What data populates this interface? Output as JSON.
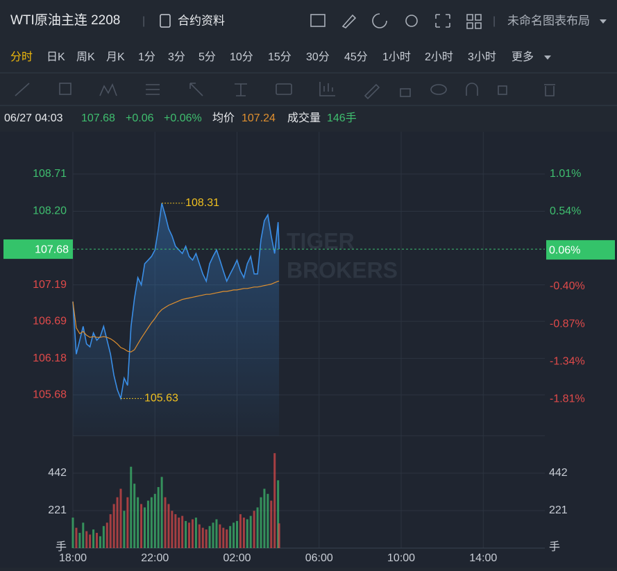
{
  "header": {
    "symbol": "WTI原油主连 2208",
    "contract_info": "合约资料",
    "layout_name": "未命名图表布局"
  },
  "timeframes": [
    "分时",
    "日K",
    "周K",
    "月K",
    "1分",
    "3分",
    "5分",
    "10分",
    "15分",
    "30分",
    "45分",
    "1小时",
    "2小时",
    "3小时",
    "更多"
  ],
  "active_timeframe": 0,
  "info": {
    "datetime": "06/27 04:03",
    "price": "107.68",
    "change": "+0.06",
    "change_pct": "+0.06%",
    "avg_label": "均价",
    "avg": "107.24",
    "volume_label": "成交量",
    "volume": "146手"
  },
  "watermark": [
    "TIGER",
    "BROKERS"
  ],
  "chart_data": {
    "type": "line",
    "x": [
      "18:00",
      "18:10",
      "18:20",
      "18:30",
      "18:40",
      "18:50",
      "19:00",
      "19:10",
      "19:20",
      "19:30",
      "19:40",
      "19:50",
      "20:00",
      "20:10",
      "20:20",
      "20:30",
      "20:40",
      "20:50",
      "21:00",
      "21:10",
      "21:20",
      "21:30",
      "21:40",
      "21:50",
      "22:00",
      "22:10",
      "22:20",
      "22:30",
      "22:40",
      "22:50",
      "23:00",
      "23:10",
      "23:20",
      "23:30",
      "23:40",
      "23:50",
      "00:00",
      "00:10",
      "00:20",
      "00:30",
      "00:40",
      "00:50",
      "01:00",
      "01:10",
      "01:20",
      "01:30",
      "01:40",
      "01:50",
      "02:00",
      "02:10",
      "02:20",
      "02:30",
      "02:40",
      "02:50",
      "03:00",
      "03:10",
      "03:20",
      "03:30",
      "03:40",
      "03:50",
      "04:00",
      "04:03"
    ],
    "series": [
      {
        "name": "价格",
        "color": "#3a8ee6",
        "values": [
          106.96,
          106.24,
          106.43,
          106.62,
          106.38,
          106.34,
          106.53,
          106.43,
          106.48,
          106.62,
          106.43,
          106.24,
          105.95,
          105.75,
          105.63,
          105.91,
          105.81,
          106.62,
          107.0,
          107.29,
          107.19,
          107.48,
          107.53,
          107.58,
          107.67,
          107.96,
          108.31,
          108.15,
          107.96,
          107.86,
          107.72,
          107.67,
          107.62,
          107.72,
          107.58,
          107.53,
          107.62,
          107.48,
          107.34,
          107.24,
          107.48,
          107.58,
          107.67,
          107.53,
          107.38,
          107.24,
          107.34,
          107.43,
          107.53,
          107.38,
          107.29,
          107.48,
          107.58,
          107.34,
          107.34,
          107.81,
          108.07,
          108.15,
          107.86,
          107.62,
          108.05,
          107.68
        ]
      },
      {
        "name": "均价",
        "color": "#e0902f",
        "values": [
          106.96,
          106.6,
          106.52,
          106.55,
          106.5,
          106.47,
          106.48,
          106.47,
          106.47,
          106.48,
          106.47,
          106.45,
          106.42,
          106.38,
          106.33,
          106.31,
          106.28,
          106.27,
          106.3,
          106.38,
          106.46,
          106.53,
          106.6,
          106.67,
          106.73,
          106.8,
          106.85,
          106.88,
          106.91,
          106.93,
          106.95,
          106.97,
          106.99,
          107.0,
          107.01,
          107.02,
          107.03,
          107.04,
          107.05,
          107.06,
          107.06,
          107.07,
          107.08,
          107.09,
          107.1,
          107.1,
          107.11,
          107.12,
          107.12,
          107.13,
          107.14,
          107.14,
          107.15,
          107.16,
          107.16,
          107.17,
          107.18,
          107.19,
          107.2,
          107.22,
          107.24,
          107.24
        ]
      }
    ],
    "volume": {
      "values": [
        180,
        120,
        90,
        150,
        100,
        80,
        110,
        90,
        70,
        130,
        150,
        200,
        260,
        300,
        350,
        220,
        300,
        480,
        380,
        300,
        260,
        240,
        280,
        300,
        320,
        360,
        420,
        300,
        260,
        220,
        200,
        180,
        190,
        160,
        150,
        170,
        180,
        140,
        120,
        110,
        130,
        150,
        170,
        140,
        120,
        110,
        130,
        150,
        160,
        200,
        180,
        170,
        190,
        220,
        240,
        300,
        350,
        320,
        280,
        560,
        400,
        146
      ],
      "up_color": "#3fbf6f",
      "down_color": "#e04a4a",
      "ylim": [
        0,
        663
      ],
      "yticks": [
        442,
        221
      ],
      "unit": "手"
    },
    "xlim": [
      "18:00",
      "17:00"
    ],
    "xticks": [
      "18:00",
      "22:00",
      "02:00",
      "06:00",
      "10:00",
      "14:00"
    ],
    "ylim": [
      105.12,
      109.29
    ],
    "yticks": [
      108.71,
      {
        "value": 108.2,
        "label": "108.20"
      },
      107.19,
      106.69,
      106.18,
      105.68
    ],
    "y2lim": [
      -2.27,
      1.54
    ],
    "y2ticks": [
      {
        "value": 1.01,
        "label": "1.01%"
      },
      {
        "value": 0.54,
        "label": "0.54%"
      },
      {
        "value": -0.4,
        "label": "-0.40%"
      },
      {
        "value": -0.87,
        "label": "-0.87%"
      },
      {
        "value": -1.34,
        "label": "-1.34%"
      },
      {
        "value": -1.81,
        "label": "-1.81%"
      }
    ],
    "last_price": 107.68,
    "last_change": {
      "value": 0.06,
      "label": "0.06%"
    },
    "annotations": [
      {
        "x": "22:20",
        "value": 108.31
      },
      {
        "x": "20:20",
        "value": 105.63
      }
    ],
    "grid": true
  }
}
